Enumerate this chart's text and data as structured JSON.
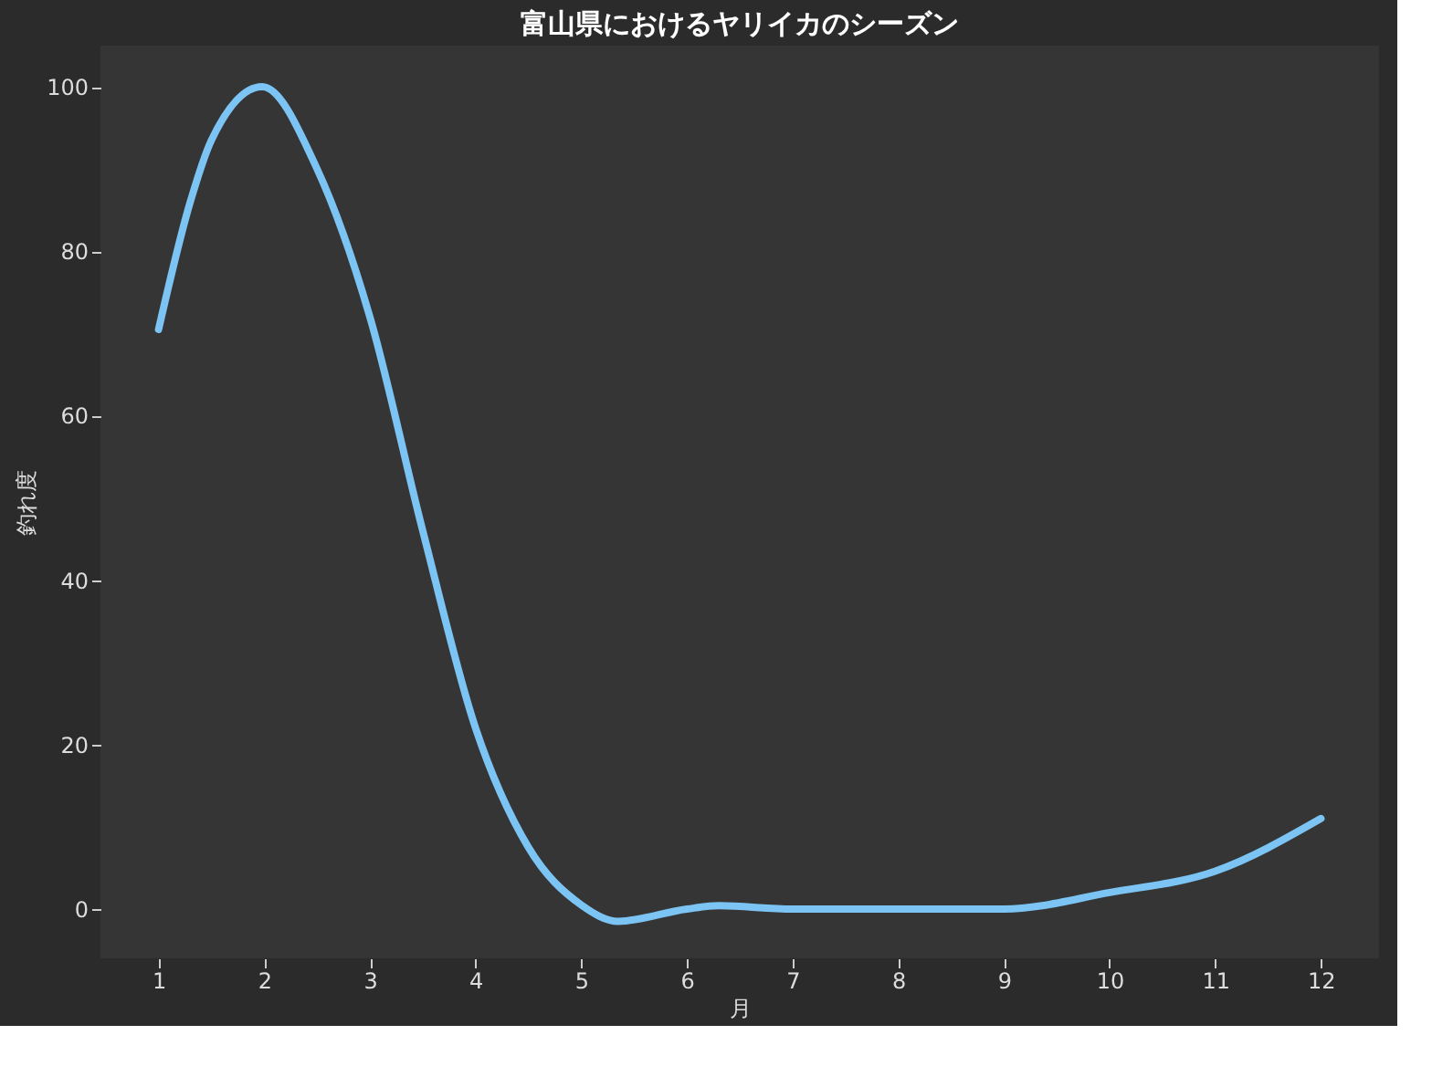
{
  "chart_data": {
    "type": "line",
    "title": "富山県におけるヤリイカのシーズン",
    "xlabel": "月",
    "ylabel": "釣れ度",
    "x": [
      1,
      1.3,
      1.5,
      1.98,
      2.5,
      3,
      3.5,
      4,
      4.5,
      5,
      5.35,
      6,
      6.3,
      7,
      8,
      9,
      10,
      11,
      12
    ],
    "series": [
      {
        "color": "#7cc4f4",
        "values": [
          70.5,
          86,
          93.5,
          100,
          90,
          72,
          46,
          22,
          7.5,
          0.5,
          -1.5,
          0,
          0.4,
          0,
          0,
          0,
          2,
          4.6,
          11
        ]
      }
    ],
    "xlim": [
      0.45,
      12.55
    ],
    "ylim": [
      -6,
      105
    ],
    "xticks": [
      1,
      2,
      3,
      4,
      5,
      6,
      7,
      8,
      9,
      10,
      11,
      12
    ],
    "yticks": [
      0,
      20,
      40,
      60,
      80,
      100
    ],
    "grid": false,
    "marker": "none",
    "line_style": "solid"
  }
}
